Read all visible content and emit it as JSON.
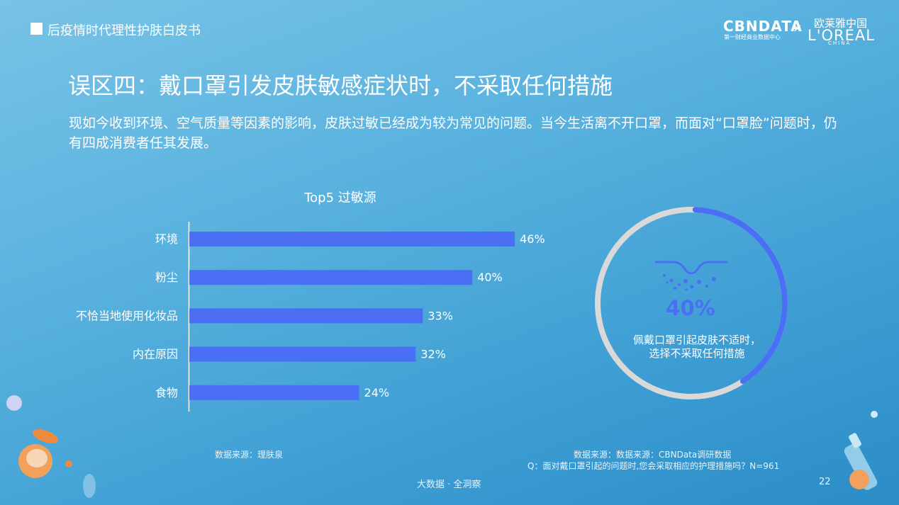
{
  "header": {
    "title": "后疫情时代理性护肤白皮书"
  },
  "brands": {
    "cbndata": "CBNDATA",
    "cbndata_sub": "第一财经商业数据中心",
    "separator": "×",
    "loreal_cn": "欧莱雅中国",
    "loreal": "L'ORÉAL",
    "loreal_sub": "CHINA"
  },
  "page_heading": "误区四：戴口罩引发皮肤敏感症状时，不采取任何措施",
  "intro": "现如今收到环境、空气质量等因素的影响，皮肤过敏已经成为较为常见的问题。当今生活离不开口罩，而面对“口罩脸”问题时，仍有四成消费者任其发展。",
  "chart_data": [
    {
      "type": "bar",
      "orientation": "horizontal",
      "title": "Top5 过敏源",
      "categories": [
        "环境",
        "粉尘",
        "不恰当地使用化妆品",
        "内在原因",
        "食物"
      ],
      "values": [
        46,
        40,
        33,
        32,
        24
      ],
      "value_labels": [
        "46%",
        "40%",
        "33%",
        "32%",
        "24%"
      ],
      "unit": "%",
      "xlim": [
        0,
        50
      ],
      "color": "#4a6ff5"
    },
    {
      "type": "pie",
      "style": "donut",
      "value": 40,
      "value_label": "40%",
      "caption": "佩戴口罩引起皮肤不适时，选择不采取任何措施",
      "colors": {
        "filled": "#4a6ff5",
        "track": "#d9d9d9"
      }
    }
  ],
  "donut": {
    "value_label": "40%",
    "caption_line1": "佩戴口罩引起皮肤不适时，",
    "caption_line2": "选择不采取任何措施"
  },
  "sources": {
    "left": "数据来源：理肤泉",
    "right": "数据来源：数据来源：CBNData调研数据",
    "question": "Q：面对戴口罩引起的问题时,您会采取相应的护理措施吗？N=961"
  },
  "footer": {
    "tagline": "大数据 · 全洞察",
    "page_number": "22"
  },
  "colors": {
    "accent": "#4a6ff5",
    "background": "#5bb3df"
  }
}
